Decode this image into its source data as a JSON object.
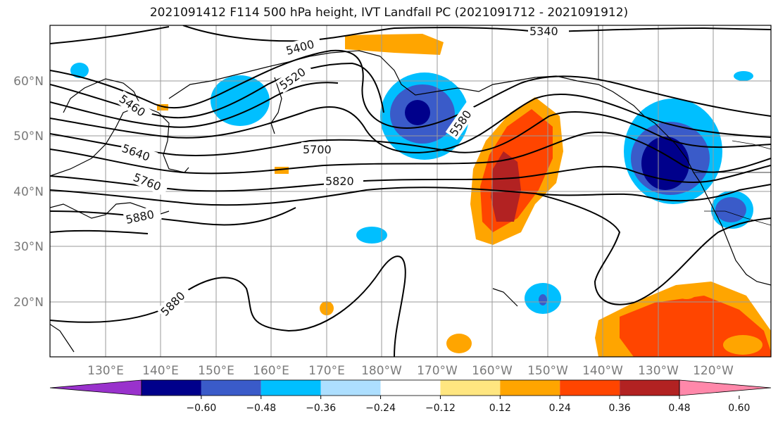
{
  "title": "2021091412 F114 500 hPa height, IVT Landfall PC (2021091712 - 2021091912)",
  "lat_labels": [
    "60°N",
    "50°N",
    "40°N",
    "30°N",
    "20°N"
  ],
  "lon_labels": [
    "130°E",
    "140°E",
    "150°E",
    "160°E",
    "170°E",
    "180°W",
    "170°W",
    "160°W",
    "150°W",
    "140°W",
    "130°W",
    "120°W"
  ],
  "contour_labels": [
    "5340",
    "5400",
    "5460",
    "5520",
    "5580",
    "5640",
    "5700",
    "5760",
    "5820",
    "5880",
    "5880"
  ],
  "colorbar": {
    "ticks": [
      "−0.60",
      "−0.48",
      "−0.36",
      "−0.24",
      "−0.12",
      "0.12",
      "0.24",
      "0.36",
      "0.48",
      "0.60"
    ],
    "colors": [
      "#9932CC",
      "#00008B",
      "#3A5BC9",
      "#00BFFF",
      "#ADDFFF",
      "#FFFFFF",
      "#FFE680",
      "#FFA500",
      "#FF4500",
      "#B22222",
      "#FF88AA"
    ]
  },
  "fill_colors": {
    "neg1": "#00BFFF",
    "neg2": "#3A5BC9",
    "neg3": "#00008B",
    "pos1": "#FFE680",
    "pos2": "#FFA500",
    "pos3": "#FF4500",
    "pos4": "#B22222"
  }
}
